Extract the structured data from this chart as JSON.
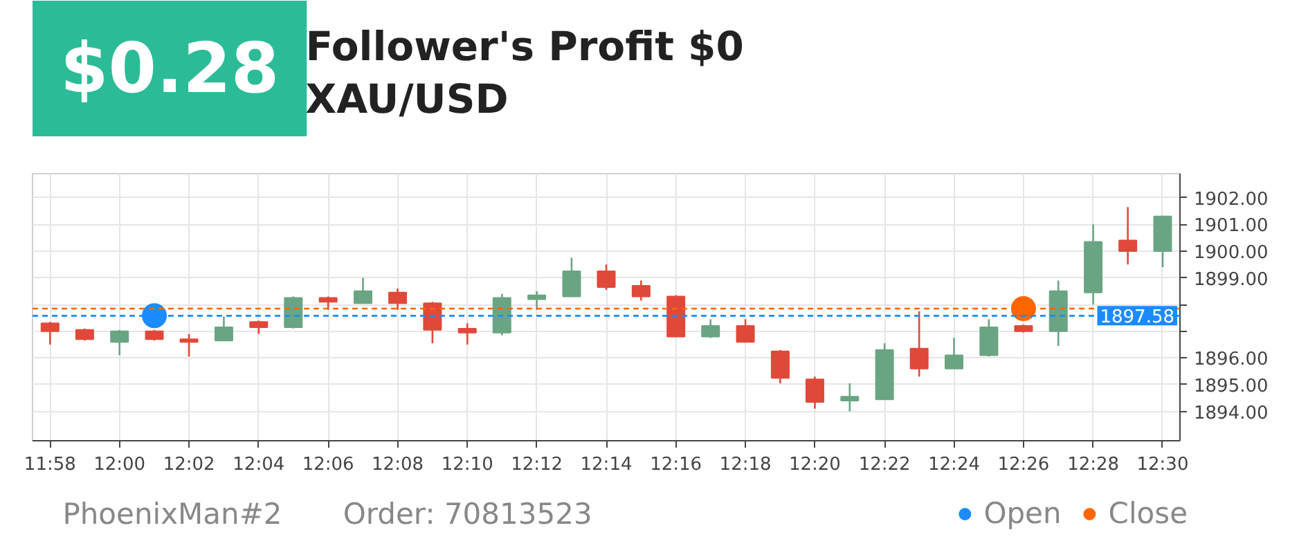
{
  "chart_data": {
    "type": "candlestick",
    "title": "Follower's Profit $0",
    "subtitle": "XAU/USD",
    "annotations": [
      "$0.28",
      "PhoenixMan#2",
      "Order:   70813523"
    ],
    "x": [
      11.9667,
      11.9833,
      12.0,
      12.0167,
      12.0333,
      12.05,
      12.0667,
      12.0833,
      12.1,
      12.1167,
      12.1333,
      12.15,
      12.1667,
      12.1833,
      12.2,
      12.2167,
      12.2333,
      12.25,
      12.2667,
      12.2833,
      12.3,
      12.3167,
      12.3333,
      12.35,
      12.3667,
      12.3833,
      12.4,
      12.4167,
      12.4333,
      12.45,
      12.4667,
      12.4833,
      12.5
    ],
    "ohlc": [
      [
        1897.3,
        1897.35,
        1896.5,
        1897.0
      ],
      [
        1897.05,
        1897.1,
        1896.65,
        1896.7
      ],
      [
        1896.6,
        1897.05,
        1896.1,
        1897.0
      ],
      [
        1897.0,
        1897.05,
        1896.65,
        1896.7
      ],
      [
        1896.7,
        1896.9,
        1896.05,
        1896.6
      ],
      [
        1896.65,
        1897.55,
        1896.65,
        1897.15
      ],
      [
        1897.35,
        1897.4,
        1896.9,
        1897.15
      ],
      [
        1897.15,
        1898.3,
        1897.1,
        1898.25
      ],
      [
        1898.25,
        1898.3,
        1897.8,
        1898.1
      ],
      [
        1898.05,
        1899.0,
        1898.05,
        1898.5
      ],
      [
        1898.45,
        1898.6,
        1897.8,
        1898.05
      ],
      [
        1898.05,
        1898.1,
        1896.55,
        1897.05
      ],
      [
        1897.1,
        1897.3,
        1896.5,
        1896.95
      ],
      [
        1896.95,
        1898.4,
        1896.85,
        1898.25
      ],
      [
        1898.2,
        1898.5,
        1897.8,
        1898.35
      ],
      [
        1898.3,
        1899.75,
        1898.3,
        1899.25
      ],
      [
        1899.25,
        1899.5,
        1898.55,
        1898.65
      ],
      [
        1898.7,
        1898.9,
        1898.15,
        1898.3
      ],
      [
        1898.3,
        1898.35,
        1896.8,
        1896.8
      ],
      [
        1896.8,
        1897.45,
        1896.75,
        1897.2
      ],
      [
        1897.2,
        1897.45,
        1896.6,
        1896.6
      ],
      [
        1896.25,
        1896.3,
        1895.05,
        1895.25
      ],
      [
        1895.2,
        1895.3,
        1894.1,
        1894.35
      ],
      [
        1894.4,
        1895.05,
        1894.0,
        1894.55
      ],
      [
        1894.45,
        1896.55,
        1894.45,
        1896.3
      ],
      [
        1896.35,
        1897.75,
        1895.3,
        1895.6
      ],
      [
        1895.6,
        1896.75,
        1895.6,
        1896.1
      ],
      [
        1896.1,
        1897.45,
        1896.05,
        1897.15
      ],
      [
        1897.2,
        1897.25,
        1896.95,
        1897.0
      ],
      [
        1897.0,
        1898.9,
        1896.45,
        1898.5
      ],
      [
        1898.45,
        1901.0,
        1898.0,
        1900.35
      ],
      [
        1900.4,
        1901.65,
        1899.5,
        1900.0
      ],
      [
        1900.0,
        1901.3,
        1899.4,
        1901.3
      ]
    ],
    "colors": [
      "#e0493a",
      "#e0493a",
      "#6aa583",
      "#e0493a",
      "#e0493a",
      "#6aa583",
      "#e0493a",
      "#6aa583",
      "#e0493a",
      "#6aa583",
      "#e0493a",
      "#e0493a",
      "#e0493a",
      "#6aa583",
      "#6aa583",
      "#6aa583",
      "#e0493a",
      "#e0493a",
      "#e0493a",
      "#6aa583",
      "#e0493a",
      "#e0493a",
      "#e0493a",
      "#6aa583",
      "#6aa583",
      "#e0493a",
      "#6aa583",
      "#6aa583",
      "#e0493a",
      "#6aa583",
      "#6aa583",
      "#e0493a",
      "#6aa583"
    ],
    "series": [
      {
        "name": "Open",
        "type": "scatter",
        "color": "#1a8cff",
        "x": [
          12.0167
        ],
        "values": [
          1897.58
        ]
      },
      {
        "name": "Close",
        "type": "scatter",
        "color": "#ff6600",
        "x": [
          12.4333
        ],
        "values": [
          1897.85
        ]
      }
    ],
    "marker": "circle",
    "ref_lines": [
      {
        "axis": "y",
        "value": 1897.85,
        "label": null,
        "color": "#ff6600",
        "line_style": "dashed"
      },
      {
        "axis": "y",
        "value": 1897.58,
        "label": "1897.58",
        "color": "#1a8cff",
        "line_style": "dashed"
      }
    ],
    "xlim": [
      11.9583,
      12.5083
    ],
    "ylim": [
      1892.9,
      1902.9
    ],
    "xticks": [
      {
        "value": 11.9667,
        "label": "11:58"
      },
      {
        "value": 12.0,
        "label": "12:00"
      },
      {
        "value": 12.0333,
        "label": "12:02"
      },
      {
        "value": 12.0667,
        "label": "12:04"
      },
      {
        "value": 12.1,
        "label": "12:06"
      },
      {
        "value": 12.1333,
        "label": "12:08"
      },
      {
        "value": 12.1667,
        "label": "12:10"
      },
      {
        "value": 12.2,
        "label": "12:12"
      },
      {
        "value": 12.2333,
        "label": "12:14"
      },
      {
        "value": 12.2667,
        "label": "12:16"
      },
      {
        "value": 12.3,
        "label": "12:18"
      },
      {
        "value": 12.3333,
        "label": "12:20"
      },
      {
        "value": 12.3667,
        "label": "12:22"
      },
      {
        "value": 12.4,
        "label": "12:24"
      },
      {
        "value": 12.4333,
        "label": "12:26"
      },
      {
        "value": 12.4667,
        "label": "12:28"
      },
      {
        "value": 12.5,
        "label": "12:30"
      }
    ],
    "yticks": [
      {
        "value": 1894,
        "label": "1894.00"
      },
      {
        "value": 1895,
        "label": "1895.00"
      },
      {
        "value": 1896,
        "label": "1896.00"
      },
      {
        "value": 1897,
        "label": null
      },
      {
        "value": 1898,
        "label": null
      },
      {
        "value": 1899,
        "label": "1899.00"
      },
      {
        "value": 1900,
        "label": "1900.00"
      },
      {
        "value": 1901,
        "label": "1901.00"
      },
      {
        "value": 1902,
        "label": "1902.00"
      }
    ],
    "grid": true,
    "legend": "bottom right"
  }
}
